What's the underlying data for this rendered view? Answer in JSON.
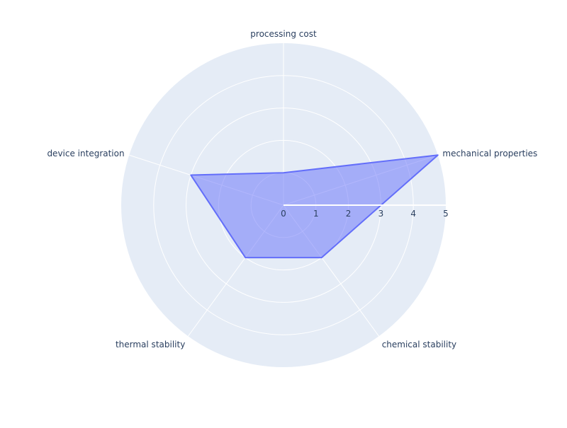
{
  "chart_data": {
    "type": "radar",
    "categories": [
      "processing cost",
      "mechanical properties",
      "chemical stability",
      "thermal stability",
      "device integration"
    ],
    "values": [
      1,
      5,
      2,
      2,
      3
    ],
    "radial_range": [
      0,
      5
    ],
    "radial_ticks": [
      "0",
      "1",
      "2",
      "3",
      "4",
      "5"
    ],
    "grid": true,
    "colors": {
      "background": "#e5ecf6",
      "grid": "#ffffff",
      "fill": "rgba(99,110,250,0.5)",
      "line": "#636efa",
      "text": "#2a3f5f"
    }
  }
}
